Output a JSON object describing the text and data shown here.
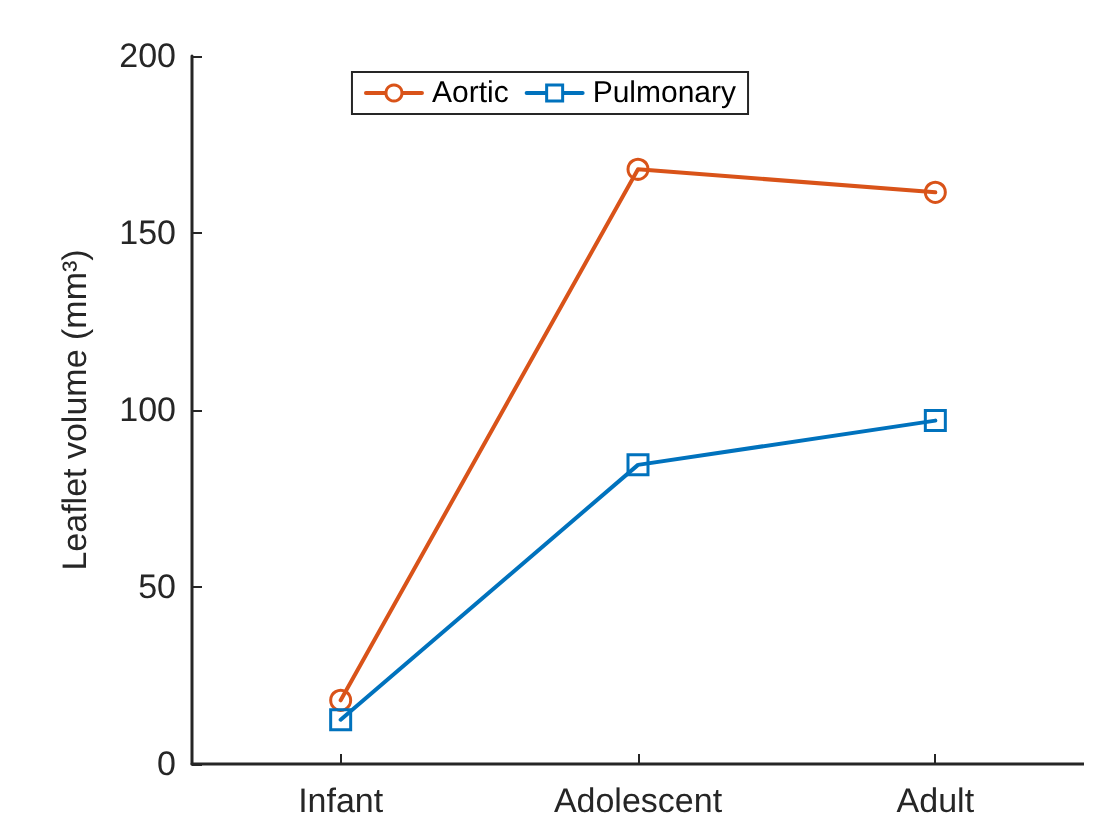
{
  "chart_data": {
    "type": "line",
    "ylabel": "Leaflet volume (mm³)",
    "categories": [
      "Infant",
      "Adolescent",
      "Adult"
    ],
    "series": [
      {
        "name": "Aortic",
        "color": "#d95319",
        "marker": "circle",
        "values": [
          18,
          168,
          161.5
        ]
      },
      {
        "name": "Pulmonary",
        "color": "#0072bd",
        "marker": "square",
        "values": [
          12.5,
          84.5,
          97
        ]
      }
    ],
    "ylim": [
      0,
      200
    ],
    "yticks": [
      0,
      50,
      100,
      150,
      200
    ],
    "grid": false,
    "legend": "top",
    "line_style": "solid"
  }
}
